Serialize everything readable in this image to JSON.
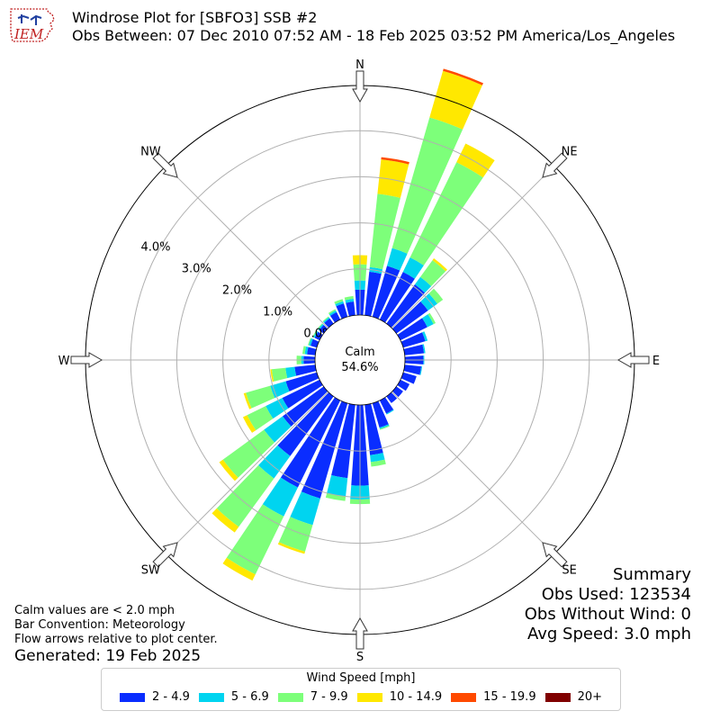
{
  "header": {
    "title_line1": "Windrose Plot for [SBFO3] SSB #2",
    "title_line2": "Obs Between: 07 Dec 2010 07:52 AM - 18 Feb 2025 03:52 PM America/Los_Angeles",
    "logo_text": "IEM"
  },
  "calm": {
    "label": "Calm",
    "value": "54.6%"
  },
  "summary": {
    "title": "Summary",
    "obs_used": "Obs Used: 123534",
    "obs_without_wind": "Obs Without Wind: 0",
    "avg_speed": "Avg Speed: 3.0 mph"
  },
  "notes": {
    "line1": "Calm values are < 2.0 mph",
    "line2": "Bar Convention: Meteorology",
    "line3": "Flow arrows relative to plot center.",
    "generated": "Generated: 19 Feb 2025"
  },
  "legend": {
    "title": "Wind Speed [mph]",
    "items": [
      {
        "label": "2 - 4.9",
        "color": "#0a2dff"
      },
      {
        "label": "5 - 6.9",
        "color": "#00d4f0"
      },
      {
        "label": "7 - 9.9",
        "color": "#7dff7a"
      },
      {
        "label": "10 - 14.9",
        "color": "#ffe800"
      },
      {
        "label": "15 - 19.9",
        "color": "#ff4a00"
      },
      {
        "label": "20+",
        "color": "#800000"
      }
    ]
  },
  "chart_data": {
    "type": "windrose",
    "rlabels": [
      "0.0%",
      "1.0%",
      "2.0%",
      "3.0%",
      "4.0%"
    ],
    "directions": [
      {
        "label": "N",
        "deg": 0
      },
      {
        "label": "NE",
        "deg": 45
      },
      {
        "label": "E",
        "deg": 90
      },
      {
        "label": "SE",
        "deg": 135
      },
      {
        "label": "S",
        "deg": 180
      },
      {
        "label": "SW",
        "deg": 225
      },
      {
        "label": "W",
        "deg": 270
      },
      {
        "label": "NW",
        "deg": 315
      }
    ],
    "series": [
      {
        "name": "2 - 4.9",
        "color": "#0a2dff"
      },
      {
        "name": "5 - 6.9",
        "color": "#00d4f0"
      },
      {
        "name": "7 - 9.9",
        "color": "#7dff7a"
      },
      {
        "name": "10 - 14.9",
        "color": "#ffe800"
      },
      {
        "name": "15 - 19.9",
        "color": "#ff4a00"
      },
      {
        "name": "20+",
        "color": "#800000"
      }
    ],
    "sectors": [
      {
        "deg": 0,
        "values": [
          0.55,
          0.2,
          0.35,
          0.2,
          0.0,
          0.0
        ]
      },
      {
        "deg": 10,
        "values": [
          0.95,
          0.1,
          1.6,
          0.75,
          0.05,
          0.0
        ]
      },
      {
        "deg": 20,
        "values": [
          1.15,
          0.4,
          2.95,
          1.05,
          0.05,
          0.0
        ]
      },
      {
        "deg": 30,
        "values": [
          1.15,
          0.35,
          2.3,
          0.45,
          0.0,
          0.0
        ]
      },
      {
        "deg": 40,
        "values": [
          1.05,
          0.2,
          0.45,
          0.05,
          0.0,
          0.0
        ]
      },
      {
        "deg": 50,
        "values": [
          0.85,
          0.25,
          0.15,
          0.0,
          0.0,
          0.0
        ]
      },
      {
        "deg": 60,
        "values": [
          0.65,
          0.15,
          0.05,
          0.0,
          0.0,
          0.0
        ]
      },
      {
        "deg": 70,
        "values": [
          0.5,
          0.05,
          0.0,
          0.0,
          0.0,
          0.0
        ]
      },
      {
        "deg": 80,
        "values": [
          0.42,
          0.03,
          0.0,
          0.0,
          0.0,
          0.0
        ]
      },
      {
        "deg": 90,
        "values": [
          0.4,
          0.02,
          0.0,
          0.0,
          0.0,
          0.0
        ]
      },
      {
        "deg": 100,
        "values": [
          0.36,
          0.02,
          0.0,
          0.0,
          0.0,
          0.0
        ]
      },
      {
        "deg": 110,
        "values": [
          0.3,
          0.0,
          0.0,
          0.0,
          0.0,
          0.0
        ]
      },
      {
        "deg": 120,
        "values": [
          0.22,
          0.0,
          0.0,
          0.0,
          0.0,
          0.0
        ]
      },
      {
        "deg": 130,
        "values": [
          0.18,
          0.0,
          0.0,
          0.0,
          0.0,
          0.0
        ]
      },
      {
        "deg": 140,
        "values": [
          0.18,
          0.0,
          0.0,
          0.0,
          0.0,
          0.0
        ]
      },
      {
        "deg": 150,
        "values": [
          0.32,
          0.02,
          0.0,
          0.0,
          0.0,
          0.0
        ]
      },
      {
        "deg": 160,
        "values": [
          0.55,
          0.03,
          0.02,
          0.0,
          0.0,
          0.0
        ]
      },
      {
        "deg": 170,
        "values": [
          1.1,
          0.15,
          0.1,
          0.0,
          0.0,
          0.0
        ]
      },
      {
        "deg": 180,
        "values": [
          1.75,
          0.3,
          0.1,
          0.0,
          0.0,
          0.0
        ]
      },
      {
        "deg": 190,
        "values": [
          1.6,
          0.4,
          0.1,
          0.0,
          0.0,
          0.0
        ]
      },
      {
        "deg": 200,
        "values": [
          2.15,
          0.6,
          0.6,
          0.05,
          0.0,
          0.0
        ]
      },
      {
        "deg": 210,
        "values": [
          2.1,
          0.7,
          1.4,
          0.15,
          0.0,
          0.0
        ]
      },
      {
        "deg": 220,
        "values": [
          1.6,
          0.6,
          1.3,
          0.15,
          0.0,
          0.0
        ]
      },
      {
        "deg": 230,
        "values": [
          1.1,
          0.5,
          1.1,
          0.1,
          0.0,
          0.0
        ]
      },
      {
        "deg": 240,
        "values": [
          0.9,
          0.4,
          0.45,
          0.1,
          0.0,
          0.0
        ]
      },
      {
        "deg": 250,
        "values": [
          0.7,
          0.35,
          0.55,
          0.05,
          0.0,
          0.0
        ]
      },
      {
        "deg": 260,
        "values": [
          0.45,
          0.2,
          0.3,
          0.03,
          0.0,
          0.0
        ]
      },
      {
        "deg": 270,
        "values": [
          0.25,
          0.05,
          0.1,
          0.0,
          0.0,
          0.0
        ]
      },
      {
        "deg": 280,
        "values": [
          0.18,
          0.05,
          0.05,
          0.0,
          0.0,
          0.0
        ]
      },
      {
        "deg": 290,
        "values": [
          0.14,
          0.04,
          0.02,
          0.0,
          0.0,
          0.0
        ]
      },
      {
        "deg": 300,
        "values": [
          0.12,
          0.03,
          0.02,
          0.0,
          0.0,
          0.0
        ]
      },
      {
        "deg": 310,
        "values": [
          0.12,
          0.03,
          0.02,
          0.0,
          0.0,
          0.0
        ]
      },
      {
        "deg": 320,
        "values": [
          0.14,
          0.03,
          0.02,
          0.0,
          0.0,
          0.0
        ]
      },
      {
        "deg": 330,
        "values": [
          0.18,
          0.04,
          0.03,
          0.0,
          0.0,
          0.0
        ]
      },
      {
        "deg": 340,
        "values": [
          0.3,
          0.05,
          0.05,
          0.0,
          0.0,
          0.0
        ]
      },
      {
        "deg": 350,
        "values": [
          0.3,
          0.06,
          0.06,
          0.0,
          0.0,
          0.0
        ]
      }
    ]
  }
}
